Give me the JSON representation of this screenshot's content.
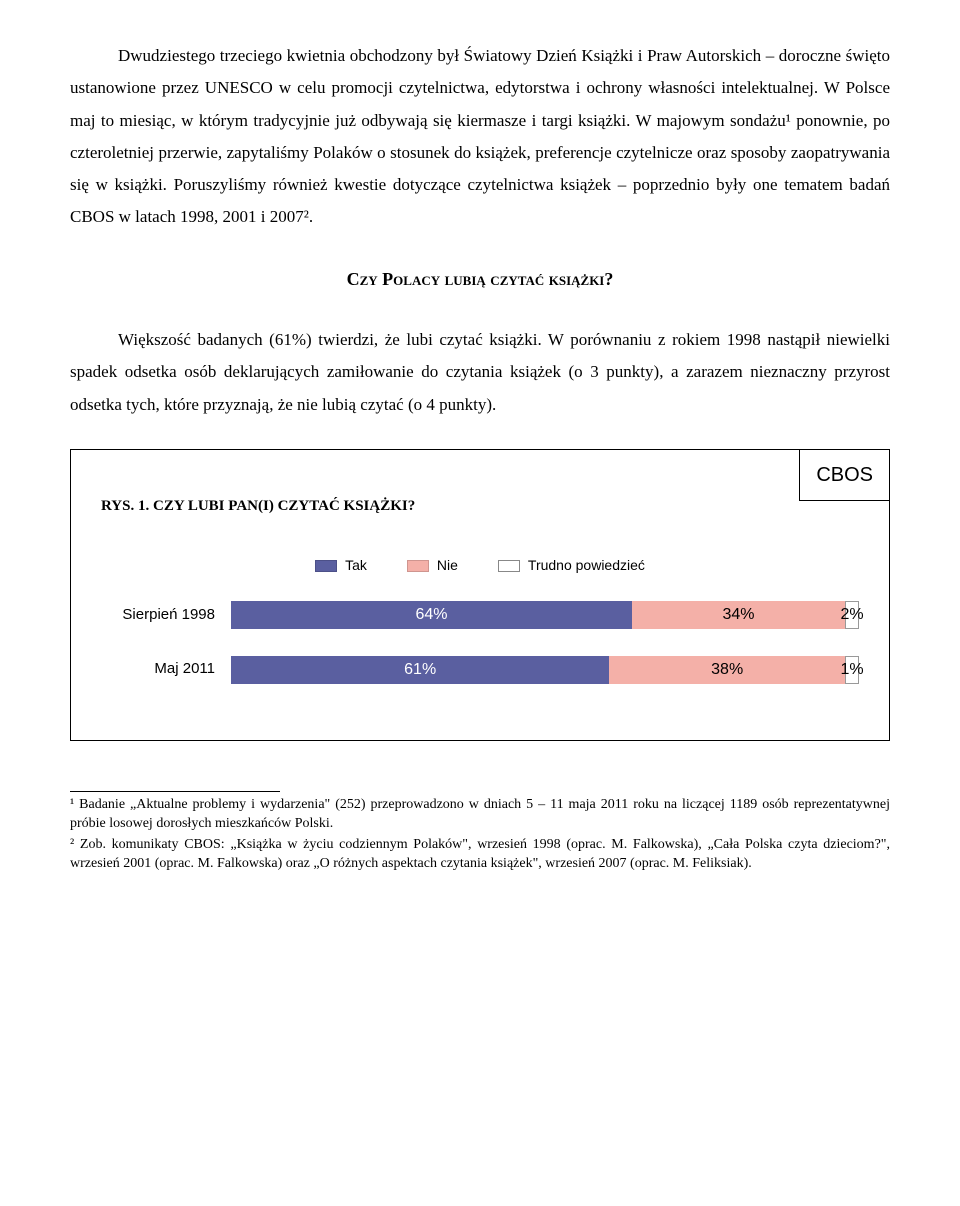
{
  "paragraphs": {
    "p1": "Dwudziestego trzeciego kwietnia obchodzony był Światowy Dzień Książki i Praw Autorskich – doroczne święto ustanowione przez UNESCO w celu promocji czytelnictwa, edytorstwa i ochrony własności intelektualnej. W Polsce maj to miesiąc, w którym tradycyjnie już odbywają się kiermasze i targi książki. W majowym sondażu¹ ponownie, po czteroletniej przerwie, zapytaliśmy Polaków o stosunek do książek, preferencje czytelnicze oraz sposoby zaopatrywania się w książki. Poruszyliśmy również kwestie dotyczące czytelnictwa książek – poprzednio były one tematem badań CBOS w latach 1998, 2001 i 2007².",
    "heading": "Czy Polacy lubią czytać książki?",
    "p2": "Większość badanych (61%) twierdzi, że lubi czytać książki. W porównaniu z rokiem 1998 nastąpił niewielki spadek odsetka osób deklarujących zamiłowanie do czytania książek (o 3 punkty), a zarazem nieznaczny przyrost odsetka tych, które przyznają, że nie lubią czytać (o  4 punkty)."
  },
  "chart": {
    "badge": "CBOS",
    "title": "RYS. 1. CZY LUBI PAN(I) CZYTAĆ KSIĄŻKI?",
    "legend": [
      {
        "label": "Tak",
        "color": "#5a5fa0"
      },
      {
        "label": "Nie",
        "color": "#f4b0a8"
      },
      {
        "label": "Trudno powiedzieć",
        "color": "#ffffff"
      }
    ],
    "series": [
      {
        "label": "Sierpień 1998",
        "segments": [
          {
            "value": 64,
            "text": "64%",
            "color": "#5a5fa0",
            "textDark": false
          },
          {
            "value": 34,
            "text": "34%",
            "color": "#f4b0a8",
            "textDark": true
          },
          {
            "value": 2,
            "text": "2%",
            "color": "#ffffff",
            "textDark": true,
            "border": true
          }
        ]
      },
      {
        "label": "Maj 2011",
        "segments": [
          {
            "value": 61,
            "text": "61%",
            "color": "#5a5fa0",
            "textDark": false
          },
          {
            "value": 38,
            "text": "38%",
            "color": "#f4b0a8",
            "textDark": true
          },
          {
            "value": 1,
            "text": "1%",
            "color": "#ffffff",
            "textDark": true,
            "border": true
          }
        ]
      }
    ]
  },
  "footnotes": {
    "f1": "¹ Badanie „Aktualne problemy i wydarzenia\" (252) przeprowadzono w dniach 5 – 11 maja 2011 roku na liczącej 1189 osób reprezentatywnej próbie losowej dorosłych mieszkańców Polski.",
    "f2": "² Zob. komunikaty CBOS: „Książka w życiu codziennym Polaków\", wrzesień 1998 (oprac. M. Falkowska), „Cała Polska czyta dzieciom?\", wrzesień 2001 (oprac. M. Falkowska) oraz „O różnych aspektach czytania książek\", wrzesień 2007 (oprac. M. Feliksiak)."
  }
}
